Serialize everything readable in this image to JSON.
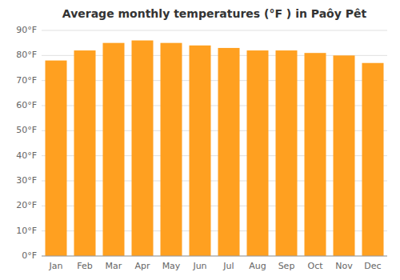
{
  "chart_data": {
    "type": "bar",
    "title": "Average monthly temperatures (°F ) in Paôy Pêt",
    "categories": [
      "Jan",
      "Feb",
      "Mar",
      "Apr",
      "May",
      "Jun",
      "Jul",
      "Aug",
      "Sep",
      "Oct",
      "Nov",
      "Dec"
    ],
    "values": [
      78,
      82,
      85,
      86,
      85,
      84,
      83,
      82,
      82,
      81,
      80,
      77
    ],
    "color": "#FFA020",
    "ylim": [
      0,
      90
    ],
    "yticks": [
      {
        "value": 0,
        "label": "0°F"
      },
      {
        "value": 10,
        "label": "10°F"
      },
      {
        "value": 20,
        "label": "20°F"
      },
      {
        "value": 30,
        "label": "30°F"
      },
      {
        "value": 40,
        "label": "40°F"
      },
      {
        "value": 50,
        "label": "50°F"
      },
      {
        "value": 60,
        "label": "60°F"
      },
      {
        "value": 70,
        "label": "70°F"
      },
      {
        "value": 80,
        "label": "80°F"
      },
      {
        "value": 90,
        "label": "90°F"
      }
    ],
    "grid": true
  }
}
